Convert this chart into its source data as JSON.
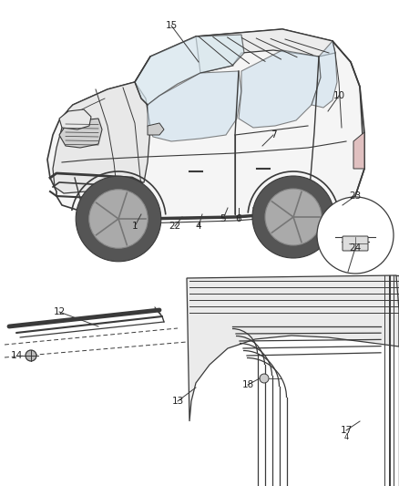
{
  "bg_color": "#ffffff",
  "line_color": "#3a3a3a",
  "label_color": "#222222",
  "figsize": [
    4.38,
    5.33
  ],
  "dpi": 100,
  "upper_labels": {
    "15": [
      185,
      28,
      210,
      75
    ],
    "7": [
      300,
      148,
      285,
      162
    ],
    "10": [
      370,
      105,
      358,
      125
    ],
    "1": [
      148,
      240,
      160,
      228
    ],
    "22": [
      192,
      243,
      200,
      232
    ],
    "4": [
      215,
      240,
      220,
      228
    ],
    "5": [
      242,
      233,
      248,
      222
    ],
    "6": [
      258,
      233,
      262,
      222
    ],
    "23": [
      385,
      218,
      372,
      228
    ],
    "24": [
      385,
      268,
      375,
      292
    ]
  },
  "lower_labels": {
    "12": [
      65,
      345,
      105,
      360
    ],
    "14": [
      18,
      390,
      32,
      390
    ],
    "13": [
      195,
      435,
      215,
      422
    ],
    "18": [
      272,
      420,
      287,
      412
    ],
    "17": [
      375,
      468,
      390,
      462
    ]
  }
}
